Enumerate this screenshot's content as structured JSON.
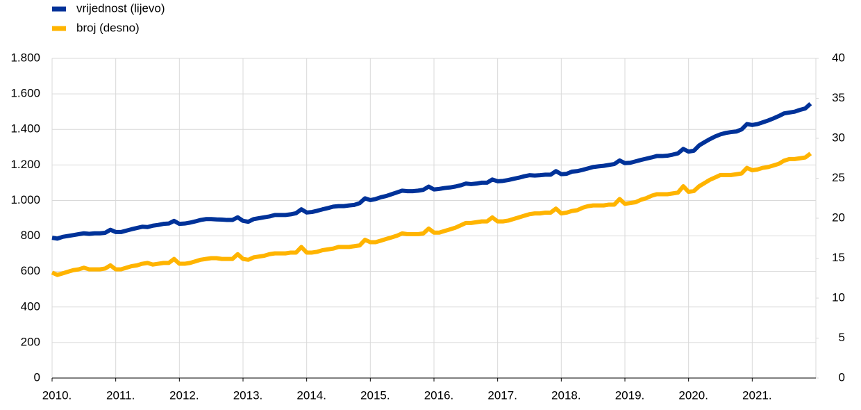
{
  "chart_data": {
    "type": "line",
    "categories": [
      "2010.",
      null,
      null,
      null,
      null,
      null,
      null,
      null,
      null,
      null,
      null,
      null,
      "2011.",
      null,
      null,
      null,
      null,
      null,
      null,
      null,
      null,
      null,
      null,
      null,
      "2012.",
      null,
      null,
      null,
      null,
      null,
      null,
      null,
      null,
      null,
      null,
      null,
      "2013.",
      null,
      null,
      null,
      null,
      null,
      null,
      null,
      null,
      null,
      null,
      null,
      "2014.",
      null,
      null,
      null,
      null,
      null,
      null,
      null,
      null,
      null,
      null,
      null,
      "2015.",
      null,
      null,
      null,
      null,
      null,
      null,
      null,
      null,
      null,
      null,
      null,
      "2016.",
      null,
      null,
      null,
      null,
      null,
      null,
      null,
      null,
      null,
      null,
      null,
      "2017.",
      null,
      null,
      null,
      null,
      null,
      null,
      null,
      null,
      null,
      null,
      null,
      "2018.",
      null,
      null,
      null,
      null,
      null,
      null,
      null,
      null,
      null,
      null,
      null,
      "2019.",
      null,
      null,
      null,
      null,
      null,
      null,
      null,
      null,
      null,
      null,
      null,
      "2020.",
      null,
      null,
      null,
      null,
      null,
      null,
      null,
      null,
      null,
      null,
      null,
      "2021.",
      null,
      null,
      null,
      null,
      null,
      null,
      null,
      null,
      null,
      null,
      null
    ],
    "series": [
      {
        "name": "vrijednost (lijevo)",
        "color": "#003299",
        "values": [
          790,
          785,
          795,
          800,
          805,
          810,
          815,
          812,
          815,
          815,
          818,
          835,
          822,
          822,
          830,
          838,
          845,
          852,
          850,
          858,
          862,
          868,
          870,
          885,
          868,
          870,
          875,
          882,
          890,
          895,
          895,
          893,
          892,
          890,
          890,
          905,
          885,
          880,
          895,
          900,
          905,
          910,
          918,
          918,
          918,
          922,
          928,
          950,
          932,
          935,
          942,
          950,
          957,
          965,
          968,
          968,
          972,
          975,
          985,
          1012,
          1002,
          1008,
          1018,
          1025,
          1035,
          1045,
          1055,
          1052,
          1052,
          1055,
          1060,
          1078,
          1062,
          1065,
          1070,
          1073,
          1078,
          1085,
          1095,
          1092,
          1095,
          1100,
          1100,
          1118,
          1108,
          1110,
          1115,
          1122,
          1128,
          1136,
          1142,
          1140,
          1142,
          1145,
          1145,
          1165,
          1148,
          1150,
          1162,
          1165,
          1172,
          1180,
          1188,
          1192,
          1195,
          1200,
          1205,
          1225,
          1210,
          1212,
          1220,
          1228,
          1235,
          1242,
          1250,
          1250,
          1252,
          1258,
          1265,
          1290,
          1275,
          1280,
          1310,
          1328,
          1345,
          1360,
          1372,
          1380,
          1385,
          1388,
          1400,
          1430,
          1425,
          1430,
          1440,
          1450,
          1462,
          1475,
          1490,
          1495,
          1500,
          1510,
          1518,
          1545
        ]
      },
      {
        "name": "broj (desno)",
        "color": "#ffb400",
        "axis": "y2",
        "values": [
          13.2,
          12.9,
          13.1,
          13.3,
          13.5,
          13.6,
          13.8,
          13.6,
          13.6,
          13.6,
          13.7,
          14.1,
          13.6,
          13.6,
          13.8,
          14.0,
          14.1,
          14.3,
          14.4,
          14.2,
          14.3,
          14.4,
          14.4,
          14.9,
          14.3,
          14.3,
          14.4,
          14.6,
          14.8,
          14.9,
          15.0,
          15.0,
          14.9,
          14.9,
          14.9,
          15.5,
          14.9,
          14.8,
          15.1,
          15.2,
          15.3,
          15.5,
          15.6,
          15.6,
          15.6,
          15.7,
          15.7,
          16.4,
          15.7,
          15.7,
          15.8,
          16.0,
          16.1,
          16.2,
          16.4,
          16.4,
          16.4,
          16.5,
          16.6,
          17.3,
          17.0,
          17.0,
          17.2,
          17.4,
          17.6,
          17.8,
          18.1,
          18.0,
          18.0,
          18.0,
          18.1,
          18.7,
          18.2,
          18.2,
          18.4,
          18.6,
          18.8,
          19.1,
          19.4,
          19.4,
          19.5,
          19.6,
          19.6,
          20.1,
          19.6,
          19.6,
          19.7,
          19.9,
          20.1,
          20.3,
          20.5,
          20.6,
          20.6,
          20.7,
          20.7,
          21.2,
          20.6,
          20.7,
          20.9,
          21.0,
          21.3,
          21.5,
          21.6,
          21.6,
          21.6,
          21.7,
          21.7,
          22.4,
          21.8,
          21.9,
          22.0,
          22.3,
          22.5,
          22.8,
          23.0,
          23.0,
          23.0,
          23.1,
          23.2,
          24.0,
          23.3,
          23.4,
          24.0,
          24.4,
          24.8,
          25.1,
          25.4,
          25.4,
          25.4,
          25.5,
          25.6,
          26.3,
          26.0,
          26.1,
          26.3,
          26.4,
          26.6,
          26.8,
          27.2,
          27.4,
          27.4,
          27.5,
          27.6,
          28.1
        ]
      }
    ],
    "ylim": [
      0,
      1800
    ],
    "yticks": [
      0,
      200,
      400,
      600,
      800,
      {
        "value": 1000,
        "label": "1.000"
      },
      {
        "value": 1200,
        "label": "1.200"
      },
      {
        "value": 1400,
        "label": "1.400"
      },
      {
        "value": 1600,
        "label": "1.600"
      },
      {
        "value": 1800,
        "label": "1.800"
      }
    ],
    "y2lim": [
      0,
      40
    ],
    "y2ticks": [
      0,
      5,
      10,
      15,
      20,
      25,
      30,
      35,
      40
    ],
    "grid": true,
    "legend": "top-left"
  }
}
